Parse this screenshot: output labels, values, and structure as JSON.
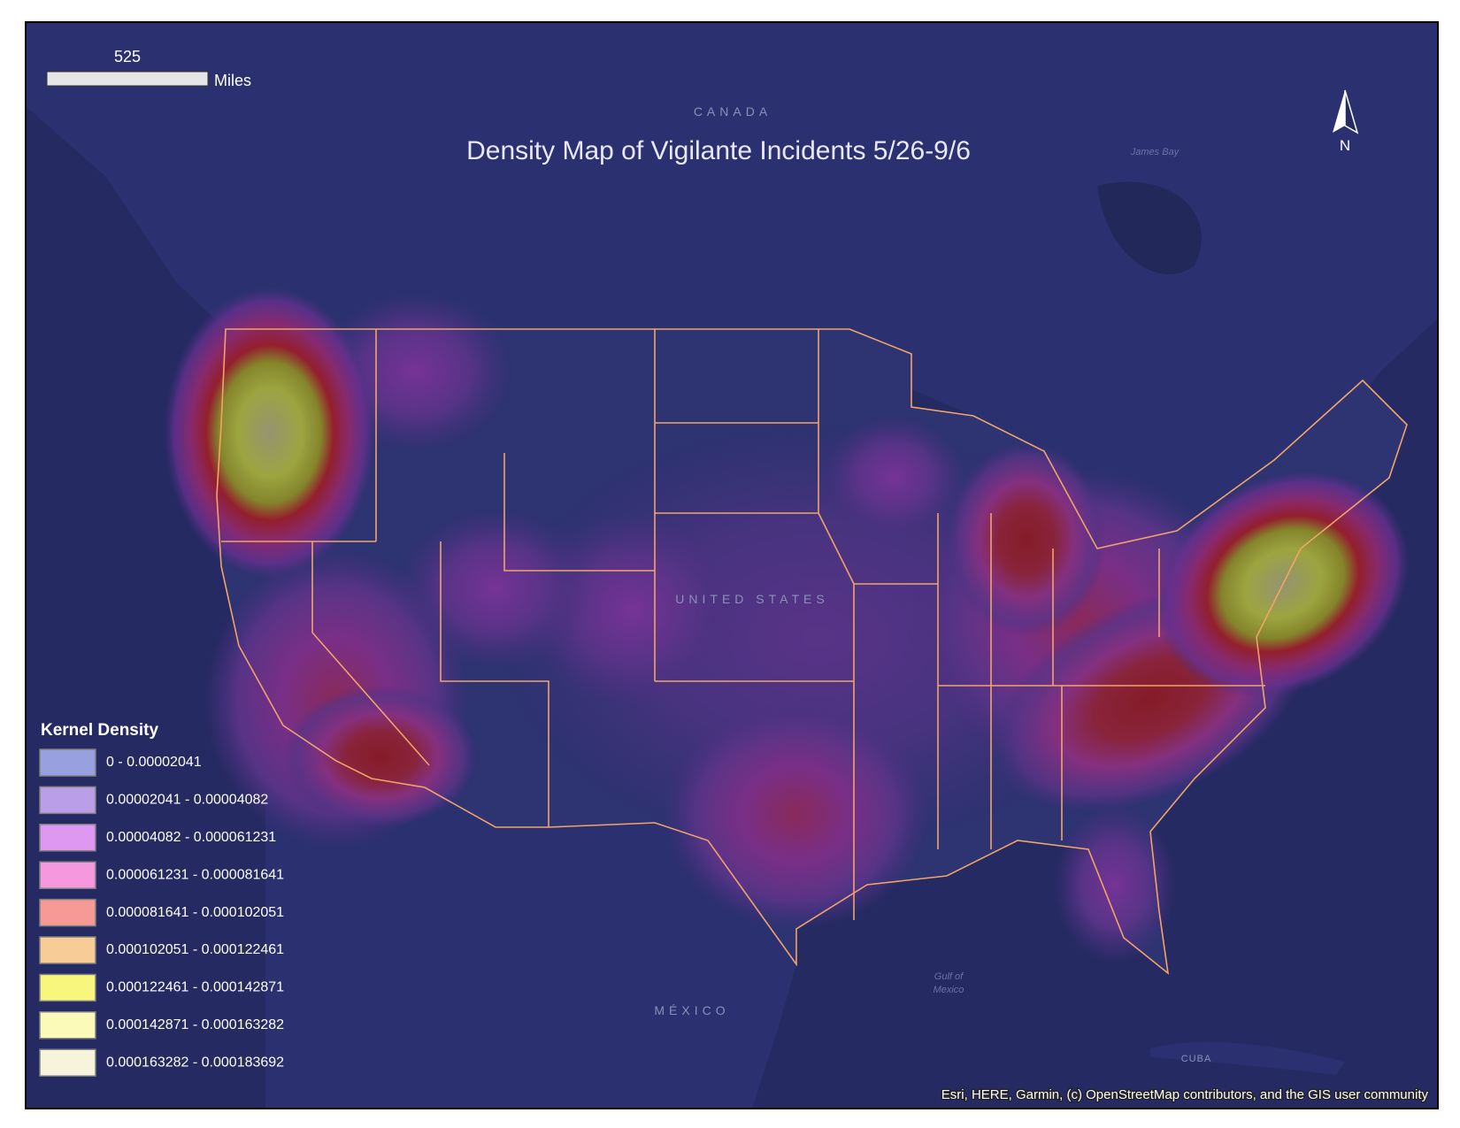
{
  "map": {
    "title": "Density Map of Vigilante Incidents 5/26-9/6",
    "scale_bar": {
      "value_label": "525",
      "unit": "Miles"
    },
    "north_arrow": "N",
    "place_labels": {
      "canada": "CANADA",
      "united_states": "UNITED STATES",
      "mexico": "MÉXICO",
      "james_bay": "James Bay",
      "gulf_line1": "Gulf of",
      "gulf_line2": "Mexico",
      "cuba": "CUBA"
    },
    "attribution": "Esri, HERE, Garmin, (c) OpenStreetMap contributors, and the GIS user community"
  },
  "legend": {
    "title": "Kernel Density",
    "items": [
      {
        "label": "0 - 0.00002041",
        "color": "#98a0e0"
      },
      {
        "label": "0.00002041 - 0.00004082",
        "color": "#bb9ee8"
      },
      {
        "label": "0.00004082 - 0.000061231",
        "color": "#df98f2"
      },
      {
        "label": "0.000061231 - 0.000081641",
        "color": "#f598de"
      },
      {
        "label": "0.000081641 - 0.000102051",
        "color": "#f79a96"
      },
      {
        "label": "0.000102051 - 0.000122461",
        "color": "#f8cc96"
      },
      {
        "label": "0.000122461 - 0.000142871",
        "color": "#f8f67c"
      },
      {
        "label": "0.000142871 - 0.000163282",
        "color": "#fbfab8"
      },
      {
        "label": "0.000163282 - 0.000183692",
        "color": "#f8f4dc"
      }
    ]
  }
}
